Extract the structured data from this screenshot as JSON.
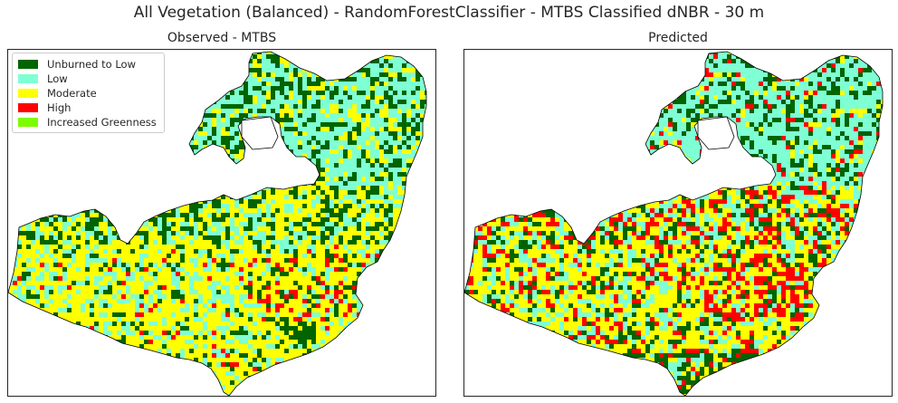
{
  "figure": {
    "suptitle": "All Vegetation (Balanced) - RandomForestClassifier - MTBS Classified dNBR - 30 m"
  },
  "panels": [
    {
      "title": "Observed - MTBS"
    },
    {
      "title": "Predicted"
    }
  ],
  "legend": {
    "placement": "upper-left of left panel",
    "items": [
      {
        "label": "Unburned to Low",
        "color": "#006400"
      },
      {
        "label": "Low",
        "color": "#7fffd4"
      },
      {
        "label": "Moderate",
        "color": "#ffff00"
      },
      {
        "label": "High",
        "color": "#ff0000"
      },
      {
        "label": "Increased Greenness",
        "color": "#7cfc00"
      }
    ]
  },
  "colors": {
    "perimeter": "#000000",
    "frame": "#262626",
    "background": "#ffffff"
  }
}
